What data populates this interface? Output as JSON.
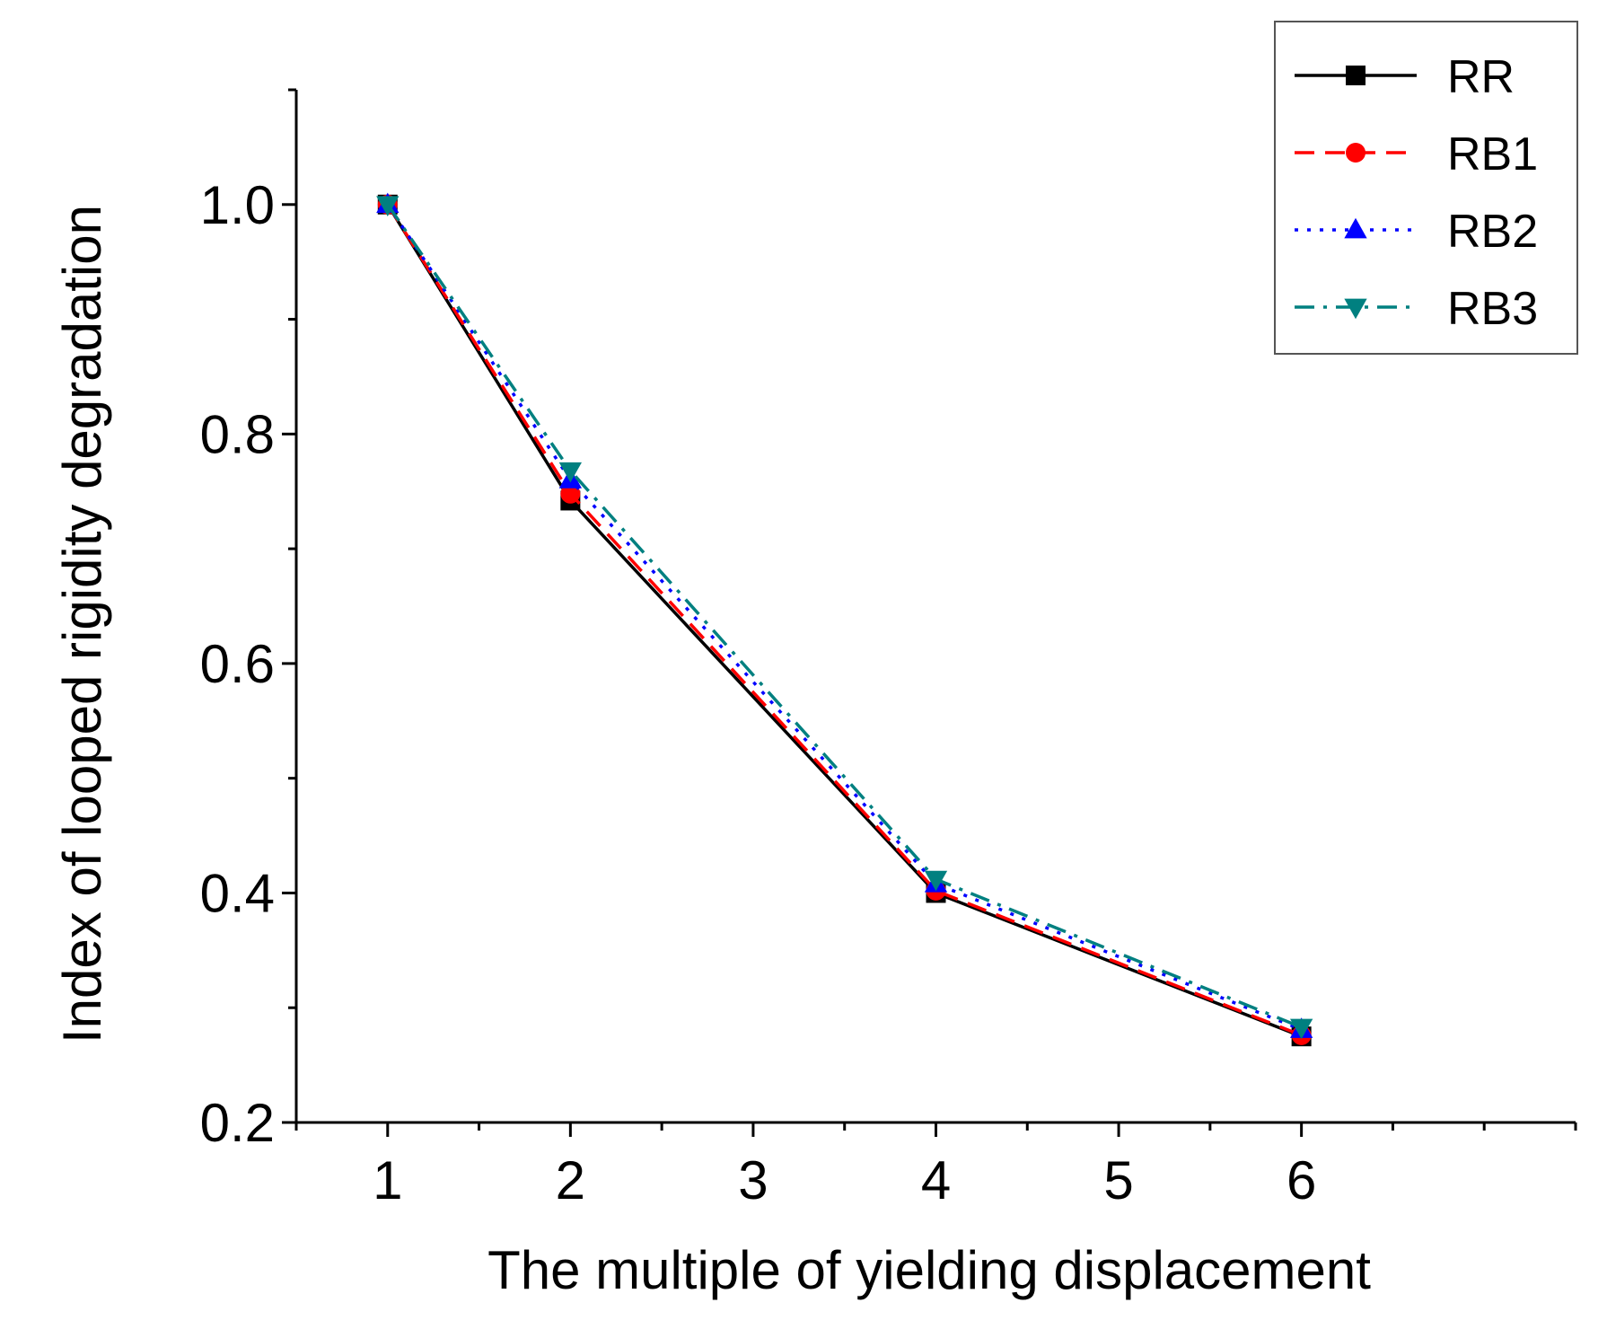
{
  "chart_data": {
    "type": "line",
    "title": "",
    "xlabel": "The multiple of yielding displacement",
    "ylabel": "Index of looped rigidity degradation",
    "x": [
      1,
      2,
      4,
      6
    ],
    "xlim": [
      0.5,
      7.5
    ],
    "ylim": [
      0.2,
      1.1
    ],
    "xticks": [
      1,
      2,
      3,
      4,
      5,
      6
    ],
    "xtick_labels": [
      "1",
      "2",
      "3",
      "4",
      "5",
      "6"
    ],
    "yticks": [
      0.2,
      0.4,
      0.6,
      0.8,
      1.0
    ],
    "ytick_labels": [
      "0.2",
      "0.4",
      "0.6",
      "0.8",
      "1.0"
    ],
    "grid": false,
    "legend_position": "top-right",
    "series": [
      {
        "name": "RR",
        "values": [
          1.0,
          0.742,
          0.4,
          0.275
        ],
        "color": "#000000",
        "dash": "solid",
        "marker": "square"
      },
      {
        "name": "RB1",
        "values": [
          1.0,
          0.748,
          0.402,
          0.276
        ],
        "color": "#ff0000",
        "dash": "dashed",
        "marker": "circle"
      },
      {
        "name": "RB2",
        "values": [
          1.0,
          0.76,
          0.408,
          0.281
        ],
        "color": "#0000ff",
        "dash": "dotted",
        "marker": "triangle-up"
      },
      {
        "name": "RB3",
        "values": [
          1.0,
          0.768,
          0.412,
          0.283
        ],
        "color": "#008080",
        "dash": "dash-dot",
        "marker": "triangle-down"
      }
    ]
  }
}
